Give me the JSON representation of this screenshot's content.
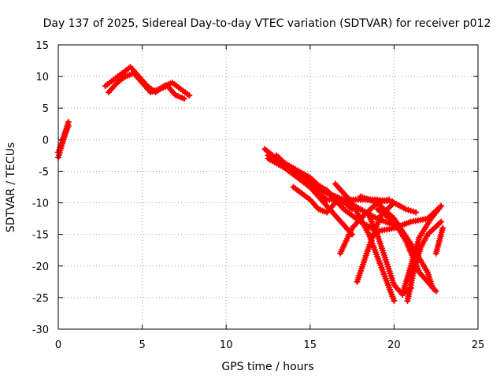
{
  "chart_data": {
    "type": "scatter",
    "title": "Day 137 of 2025, Sidereal Day-to-day VTEC variation (SDTVAR) for receiver p012",
    "xlabel": "GPS time / hours",
    "ylabel": "SDTVAR / TECUs",
    "xlim": [
      0,
      25
    ],
    "ylim": [
      -30,
      15
    ],
    "xticks": [
      0,
      5,
      10,
      15,
      20,
      25
    ],
    "yticks": [
      -30,
      -25,
      -20,
      -15,
      -10,
      -5,
      0,
      5,
      10,
      15
    ],
    "grid": true,
    "marker": "+",
    "color": "#ff0000",
    "series": [
      {
        "x": [
          0.0,
          0.2,
          0.4,
          0.6
        ],
        "y": [
          -2.8,
          -1.0,
          0.8,
          2.8
        ]
      },
      {
        "x": [
          0.0,
          0.2,
          0.4,
          0.6
        ],
        "y": [
          -2.0,
          -0.5,
          1.0,
          2.2
        ]
      },
      {
        "x": [
          2.8,
          3.3,
          3.8,
          4.3,
          4.8,
          5.3,
          5.8,
          6.3,
          6.8,
          7.3,
          7.8
        ],
        "y": [
          8.5,
          9.5,
          10.5,
          11.5,
          10.0,
          8.5,
          7.5,
          8.5,
          9.0,
          8.0,
          7.0
        ]
      },
      {
        "x": [
          3.0,
          3.5,
          4.0,
          4.5,
          5.0,
          5.5,
          6.0,
          6.5,
          7.0,
          7.5
        ],
        "y": [
          7.5,
          9.0,
          10.0,
          10.5,
          9.0,
          7.5,
          8.0,
          8.5,
          7.0,
          6.5
        ]
      },
      {
        "x": [
          12.3,
          13.0,
          14.0,
          15.0,
          15.8,
          16.8,
          17.5
        ],
        "y": [
          -1.5,
          -3.0,
          -4.5,
          -6.0,
          -8.0,
          -9.5,
          -11.0
        ]
      },
      {
        "x": [
          12.5,
          13.5,
          14.5,
          15.5,
          16.5,
          17.5
        ],
        "y": [
          -2.5,
          -4.0,
          -6.0,
          -9.0,
          -12.0,
          -15.0
        ]
      },
      {
        "x": [
          13.0,
          14.0,
          15.0,
          16.0,
          17.0,
          18.0,
          19.0,
          20.0
        ],
        "y": [
          -3.0,
          -5.0,
          -7.0,
          -8.5,
          -9.5,
          -11.0,
          -12.5,
          -13.5
        ]
      },
      {
        "x": [
          12.5,
          13.5,
          14.5,
          15.2,
          16.0,
          17.0,
          18.0,
          19.0,
          19.9
        ],
        "y": [
          -3.0,
          -4.5,
          -6.5,
          -8.0,
          -9.5,
          -9.5,
          -9.5,
          -9.5,
          -9.8
        ]
      },
      {
        "x": [
          13.0,
          14.0,
          15.0,
          16.0,
          17.0,
          18.0,
          19.0,
          20.0,
          21.0,
          22.0,
          22.8
        ],
        "y": [
          -2.5,
          -5.0,
          -6.5,
          -8.0,
          -11.0,
          -13.0,
          -14.5,
          -14.0,
          -13.0,
          -12.5,
          -10.5
        ]
      },
      {
        "x": [
          14.0,
          15.0,
          15.5,
          16.0,
          16.5
        ],
        "y": [
          -7.5,
          -9.5,
          -11.0,
          -11.5,
          -10.0
        ]
      },
      {
        "x": [
          16.8,
          17.5,
          18.2,
          19.0,
          19.7
        ],
        "y": [
          -18.0,
          -14.0,
          -12.0,
          -10.0,
          -9.5
        ]
      },
      {
        "x": [
          16.5,
          17.5,
          18.5,
          19.5,
          20.0
        ],
        "y": [
          -7.0,
          -10.0,
          -15.0,
          -22.0,
          -25.5
        ]
      },
      {
        "x": [
          17.8,
          18.5,
          19.2,
          20.0,
          20.7,
          21.3
        ],
        "y": [
          -22.5,
          -17.0,
          -12.0,
          -10.0,
          -11.0,
          -11.5
        ]
      },
      {
        "x": [
          18.0,
          19.0,
          20.0,
          21.0,
          22.0,
          22.3
        ],
        "y": [
          -9.0,
          -10.0,
          -12.5,
          -16.5,
          -21.0,
          -23.5
        ]
      },
      {
        "x": [
          18.5,
          19.0,
          19.5,
          20.0,
          20.5,
          21.0
        ],
        "y": [
          -12.0,
          -15.0,
          -19.0,
          -23.0,
          -24.5,
          -23.5
        ]
      },
      {
        "x": [
          19.0,
          20.0,
          20.7,
          21.5,
          22.5
        ],
        "y": [
          -11.0,
          -13.0,
          -16.0,
          -21.0,
          -24.0
        ]
      },
      {
        "x": [
          20.5,
          21.0,
          21.5,
          22.2,
          22.8
        ],
        "y": [
          -24.5,
          -20.0,
          -15.5,
          -12.5,
          -10.5
        ]
      },
      {
        "x": [
          20.8,
          21.2,
          21.6,
          22.0,
          22.4,
          22.8
        ],
        "y": [
          -25.5,
          -20.5,
          -17.0,
          -15.0,
          -14.0,
          -13.0
        ]
      },
      {
        "x": [
          22.5,
          22.7,
          22.9
        ],
        "y": [
          -18.0,
          -16.0,
          -14.0
        ]
      }
    ]
  }
}
